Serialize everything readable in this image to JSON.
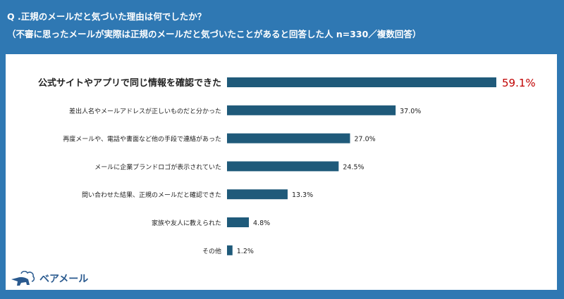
{
  "header": {
    "question": "Q .正規のメールだと気づいた理由は何でしたか？",
    "subtitle": "（不審に思ったメールが実際は正規のメールだと気づいたことがあると回答した人 n=330／複数回答）"
  },
  "chart_data": {
    "type": "bar",
    "orientation": "horizontal",
    "categories": [
      "公式サイトやアプリで同じ情報を確認できた",
      "差出人名やメールアドレスが正しいものだと分かった",
      "再度メールや、電話や書面など他の手段で連絡があった",
      "メールに企業ブランドロゴが表示されていた",
      "問い合わせた結果、正規のメールだと確認できた",
      "家族や友人に教えられた",
      "その他"
    ],
    "values": [
      59.1,
      37.0,
      27.0,
      24.5,
      13.3,
      4.8,
      1.2
    ],
    "labels": [
      "59.1%",
      "37.0%",
      "27.0%",
      "24.5%",
      "13.3%",
      "4.8%",
      "1.2%"
    ],
    "unit": "%",
    "bar_color": "#1f5a7a",
    "highlight_label_color": "#c00000",
    "grid": false
  },
  "logo": {
    "text": "ベアメール"
  },
  "colors": {
    "background": "#2f78b3",
    "panel": "#ffffff"
  }
}
